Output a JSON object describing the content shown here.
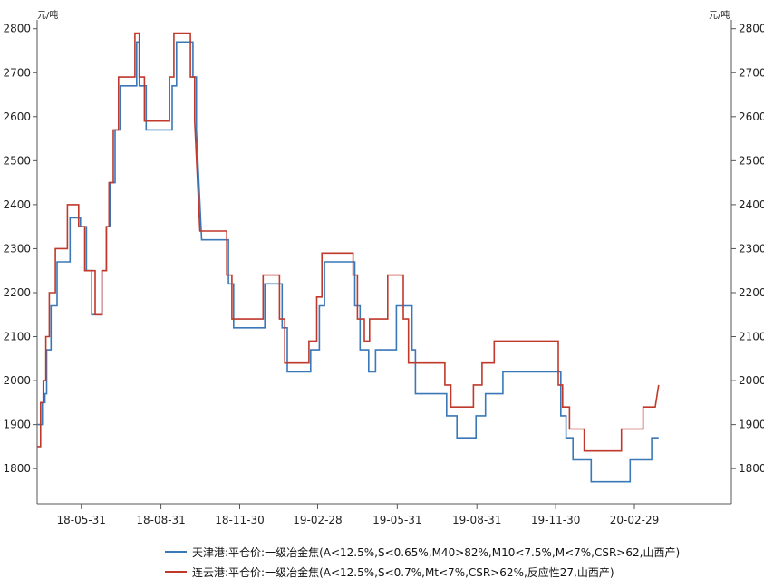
{
  "chart_data": {
    "type": "line",
    "y_unit_left": "元/吨",
    "y_unit_right": "元/吨",
    "ylim": [
      1720,
      2820
    ],
    "yticks": [
      1800,
      1900,
      2000,
      2100,
      2200,
      2300,
      2400,
      2500,
      2600,
      2700,
      2800
    ],
    "xlim": [
      "2018-04-10",
      "2020-06-20"
    ],
    "xticks": [
      "2018-05-31",
      "2018-08-31",
      "2018-11-30",
      "2019-02-28",
      "2019-05-31",
      "2019-08-31",
      "2019-11-30",
      "2020-02-29"
    ],
    "xtick_labels": [
      "18-05-31",
      "18-08-31",
      "18-11-30",
      "19-02-28",
      "19-05-31",
      "19-08-31",
      "19-11-30",
      "20-02-29"
    ],
    "legend_position": "bottom",
    "grid": false,
    "series": [
      {
        "name": "天津港:平仓价:一级冶金焦(A<12.5%,S<0.65%,M40>82%,M10<7.5%,M<7%,CSR>62,山西产)",
        "color": "#3a78b8",
        "points": [
          [
            "2018-04-10",
            1900
          ],
          [
            "2018-04-16",
            1900
          ],
          [
            "2018-04-16",
            1950
          ],
          [
            "2018-04-19",
            1950
          ],
          [
            "2018-04-19",
            1970
          ],
          [
            "2018-04-21",
            1970
          ],
          [
            "2018-04-21",
            2070
          ],
          [
            "2018-04-26",
            2070
          ],
          [
            "2018-04-26",
            2170
          ],
          [
            "2018-05-03",
            2170
          ],
          [
            "2018-05-03",
            2270
          ],
          [
            "2018-05-18",
            2270
          ],
          [
            "2018-05-18",
            2370
          ],
          [
            "2018-05-30",
            2370
          ],
          [
            "2018-05-30",
            2350
          ],
          [
            "2018-06-06",
            2350
          ],
          [
            "2018-06-06",
            2250
          ],
          [
            "2018-06-12",
            2250
          ],
          [
            "2018-06-12",
            2150
          ],
          [
            "2018-06-24",
            2150
          ],
          [
            "2018-06-24",
            2250
          ],
          [
            "2018-06-29",
            2250
          ],
          [
            "2018-06-29",
            2350
          ],
          [
            "2018-07-03",
            2350
          ],
          [
            "2018-07-03",
            2450
          ],
          [
            "2018-07-09",
            2450
          ],
          [
            "2018-07-09",
            2570
          ],
          [
            "2018-07-15",
            2570
          ],
          [
            "2018-07-15",
            2670
          ],
          [
            "2018-08-03",
            2670
          ],
          [
            "2018-08-03",
            2770
          ],
          [
            "2018-08-06",
            2770
          ],
          [
            "2018-08-06",
            2670
          ],
          [
            "2018-08-14",
            2670
          ],
          [
            "2018-08-14",
            2570
          ],
          [
            "2018-09-13",
            2570
          ],
          [
            "2018-09-13",
            2670
          ],
          [
            "2018-09-18",
            2670
          ],
          [
            "2018-09-18",
            2770
          ],
          [
            "2018-10-07",
            2770
          ],
          [
            "2018-10-07",
            2690
          ],
          [
            "2018-10-11",
            2690
          ],
          [
            "2018-10-11",
            2570
          ],
          [
            "2018-10-17",
            2320
          ],
          [
            "2018-11-17",
            2320
          ],
          [
            "2018-11-17",
            2220
          ],
          [
            "2018-11-23",
            2220
          ],
          [
            "2018-11-23",
            2120
          ],
          [
            "2018-12-29",
            2120
          ],
          [
            "2018-12-29",
            2220
          ],
          [
            "2019-01-18",
            2220
          ],
          [
            "2019-01-18",
            2120
          ],
          [
            "2019-01-24",
            2120
          ],
          [
            "2019-01-24",
            2020
          ],
          [
            "2019-02-20",
            2020
          ],
          [
            "2019-02-20",
            2070
          ],
          [
            "2019-03-02",
            2070
          ],
          [
            "2019-03-02",
            2170
          ],
          [
            "2019-03-08",
            2170
          ],
          [
            "2019-03-08",
            2270
          ],
          [
            "2019-04-12",
            2270
          ],
          [
            "2019-04-12",
            2170
          ],
          [
            "2019-04-18",
            2170
          ],
          [
            "2019-04-18",
            2070
          ],
          [
            "2019-04-28",
            2070
          ],
          [
            "2019-04-28",
            2020
          ],
          [
            "2019-05-06",
            2020
          ],
          [
            "2019-05-06",
            2070
          ],
          [
            "2019-05-30",
            2070
          ],
          [
            "2019-05-30",
            2170
          ],
          [
            "2019-06-17",
            2170
          ],
          [
            "2019-06-17",
            2070
          ],
          [
            "2019-06-21",
            2070
          ],
          [
            "2019-06-21",
            1970
          ],
          [
            "2019-07-27",
            1970
          ],
          [
            "2019-07-27",
            1920
          ],
          [
            "2019-08-08",
            1920
          ],
          [
            "2019-08-08",
            1870
          ],
          [
            "2019-08-30",
            1870
          ],
          [
            "2019-08-30",
            1920
          ],
          [
            "2019-09-10",
            1920
          ],
          [
            "2019-09-10",
            1970
          ],
          [
            "2019-09-30",
            1970
          ],
          [
            "2019-09-30",
            2020
          ],
          [
            "2019-12-06",
            2020
          ],
          [
            "2019-12-06",
            1920
          ],
          [
            "2019-12-12",
            1920
          ],
          [
            "2019-12-12",
            1870
          ],
          [
            "2019-12-20",
            1870
          ],
          [
            "2019-12-20",
            1820
          ],
          [
            "2020-01-10",
            1820
          ],
          [
            "2020-01-10",
            1770
          ],
          [
            "2020-02-24",
            1770
          ],
          [
            "2020-02-24",
            1820
          ],
          [
            "2020-03-20",
            1820
          ],
          [
            "2020-03-20",
            1870
          ],
          [
            "2020-03-28",
            1870
          ]
        ]
      },
      {
        "name": "连云港:平仓价:一级冶金焦(A<12.5%,S<0.7%,Mt<7%,CSR>62%,反应性27,山西产)",
        "color": "#c0392b",
        "points": [
          [
            "2018-04-10",
            1850
          ],
          [
            "2018-04-14",
            1850
          ],
          [
            "2018-04-14",
            1950
          ],
          [
            "2018-04-17",
            1950
          ],
          [
            "2018-04-17",
            2000
          ],
          [
            "2018-04-20",
            2000
          ],
          [
            "2018-04-20",
            2100
          ],
          [
            "2018-04-24",
            2100
          ],
          [
            "2018-04-24",
            2200
          ],
          [
            "2018-05-01",
            2200
          ],
          [
            "2018-05-01",
            2300
          ],
          [
            "2018-05-15",
            2300
          ],
          [
            "2018-05-15",
            2400
          ],
          [
            "2018-05-28",
            2400
          ],
          [
            "2018-05-28",
            2350
          ],
          [
            "2018-06-04",
            2350
          ],
          [
            "2018-06-04",
            2250
          ],
          [
            "2018-06-16",
            2250
          ],
          [
            "2018-06-16",
            2150
          ],
          [
            "2018-06-24",
            2150
          ],
          [
            "2018-06-24",
            2250
          ],
          [
            "2018-06-29",
            2250
          ],
          [
            "2018-06-29",
            2350
          ],
          [
            "2018-07-02",
            2350
          ],
          [
            "2018-07-02",
            2450
          ],
          [
            "2018-07-07",
            2450
          ],
          [
            "2018-07-07",
            2570
          ],
          [
            "2018-07-13",
            2570
          ],
          [
            "2018-07-13",
            2690
          ],
          [
            "2018-08-01",
            2690
          ],
          [
            "2018-08-01",
            2790
          ],
          [
            "2018-08-06",
            2790
          ],
          [
            "2018-08-06",
            2690
          ],
          [
            "2018-08-12",
            2690
          ],
          [
            "2018-08-12",
            2590
          ],
          [
            "2018-09-10",
            2590
          ],
          [
            "2018-09-10",
            2690
          ],
          [
            "2018-09-15",
            2690
          ],
          [
            "2018-09-15",
            2790
          ],
          [
            "2018-10-04",
            2790
          ],
          [
            "2018-10-04",
            2690
          ],
          [
            "2018-10-09",
            2690
          ],
          [
            "2018-10-09",
            2590
          ],
          [
            "2018-10-15",
            2340
          ],
          [
            "2018-11-15",
            2340
          ],
          [
            "2018-11-15",
            2240
          ],
          [
            "2018-11-21",
            2240
          ],
          [
            "2018-11-21",
            2140
          ],
          [
            "2018-12-27",
            2140
          ],
          [
            "2018-12-27",
            2240
          ],
          [
            "2019-01-15",
            2240
          ],
          [
            "2019-01-15",
            2140
          ],
          [
            "2019-01-21",
            2140
          ],
          [
            "2019-01-21",
            2040
          ],
          [
            "2019-02-18",
            2040
          ],
          [
            "2019-02-18",
            2090
          ],
          [
            "2019-02-27",
            2090
          ],
          [
            "2019-02-27",
            2190
          ],
          [
            "2019-03-05",
            2190
          ],
          [
            "2019-03-05",
            2290
          ],
          [
            "2019-04-10",
            2290
          ],
          [
            "2019-04-10",
            2240
          ],
          [
            "2019-04-15",
            2240
          ],
          [
            "2019-04-15",
            2140
          ],
          [
            "2019-04-23",
            2140
          ],
          [
            "2019-04-23",
            2090
          ],
          [
            "2019-04-29",
            2090
          ],
          [
            "2019-04-29",
            2140
          ],
          [
            "2019-05-20",
            2140
          ],
          [
            "2019-05-20",
            2240
          ],
          [
            "2019-06-07",
            2240
          ],
          [
            "2019-06-07",
            2140
          ],
          [
            "2019-06-13",
            2140
          ],
          [
            "2019-06-13",
            2040
          ],
          [
            "2019-07-25",
            2040
          ],
          [
            "2019-07-25",
            1990
          ],
          [
            "2019-08-01",
            1990
          ],
          [
            "2019-08-01",
            1940
          ],
          [
            "2019-08-27",
            1940
          ],
          [
            "2019-08-27",
            1990
          ],
          [
            "2019-09-06",
            1990
          ],
          [
            "2019-09-06",
            2040
          ],
          [
            "2019-09-20",
            2040
          ],
          [
            "2019-09-20",
            2090
          ],
          [
            "2019-12-03",
            2090
          ],
          [
            "2019-12-03",
            1990
          ],
          [
            "2019-12-08",
            1990
          ],
          [
            "2019-12-08",
            1940
          ],
          [
            "2019-12-16",
            1940
          ],
          [
            "2019-12-16",
            1890
          ],
          [
            "2020-01-02",
            1890
          ],
          [
            "2020-01-02",
            1840
          ],
          [
            "2020-02-14",
            1840
          ],
          [
            "2020-02-14",
            1890
          ],
          [
            "2020-03-10",
            1890
          ],
          [
            "2020-03-10",
            1940
          ],
          [
            "2020-03-24",
            1940
          ],
          [
            "2020-03-28",
            1990
          ]
        ]
      }
    ]
  }
}
